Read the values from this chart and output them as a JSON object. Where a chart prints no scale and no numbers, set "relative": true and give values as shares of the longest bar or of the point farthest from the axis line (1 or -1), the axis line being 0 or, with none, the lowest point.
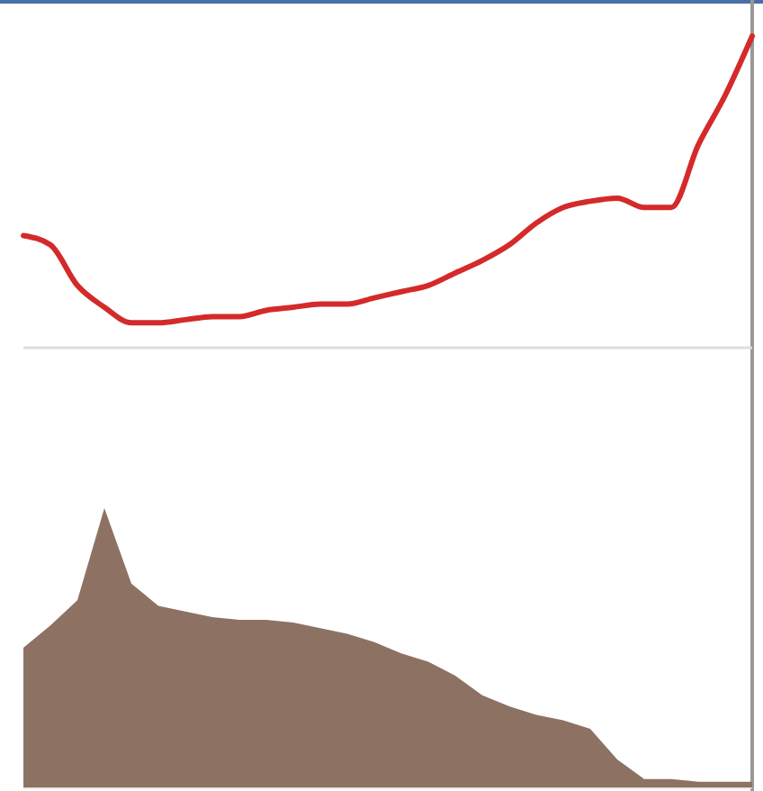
{
  "chart_data": [
    {
      "type": "line",
      "relative": true,
      "categories": [
        null,
        null,
        null,
        null,
        null,
        null,
        null,
        null,
        null,
        null,
        null,
        null,
        null,
        null,
        null,
        null,
        null,
        null,
        null,
        null,
        null,
        null,
        null,
        null,
        null,
        null,
        null,
        null
      ],
      "series": [
        {
          "color": "#d42a2a",
          "values": [
            0.36,
            0.33,
            0.2,
            0.13,
            0.08,
            0.08,
            0.09,
            0.1,
            0.1,
            0.12,
            0.13,
            0.14,
            0.14,
            0.16,
            0.18,
            0.2,
            0.24,
            0.28,
            0.33,
            0.4,
            0.45,
            0.47,
            0.48,
            0.45,
            0.45,
            0.65,
            0.81,
            1
          ]
        }
      ]
    },
    {
      "type": "area",
      "relative": true,
      "categories": [
        null,
        null,
        null,
        null,
        null,
        null,
        null,
        null,
        null,
        null,
        null,
        null,
        null,
        null,
        null,
        null,
        null,
        null,
        null,
        null,
        null,
        null,
        null,
        null,
        null,
        null,
        null,
        null
      ],
      "series": [
        {
          "color": "#8d7264",
          "values": [
            0.5,
            0.58,
            0.67,
            1,
            0.73,
            0.65,
            0.63,
            0.61,
            0.6,
            0.6,
            0.59,
            0.57,
            0.55,
            0.52,
            0.48,
            0.45,
            0.4,
            0.33,
            0.29,
            0.26,
            0.24,
            0.21,
            0.1,
            0.03,
            0.03,
            0.02,
            0.02,
            0.02
          ]
        }
      ]
    }
  ]
}
